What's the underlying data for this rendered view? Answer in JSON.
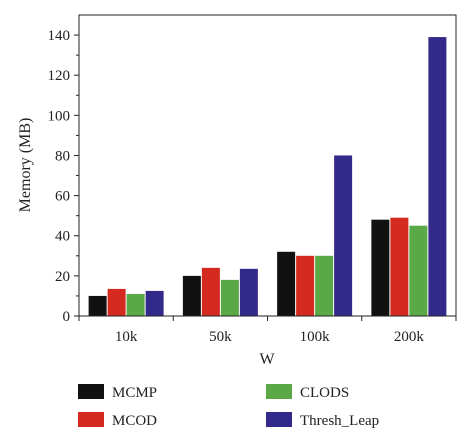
{
  "chart_data": {
    "type": "bar",
    "title": "",
    "xlabel": "W",
    "ylabel": "Memory (MB)",
    "categories": [
      "10k",
      "50k",
      "100k",
      "200k"
    ],
    "ylim": [
      0,
      150
    ],
    "yticks": [
      0,
      20,
      40,
      60,
      80,
      100,
      120,
      140
    ],
    "grid": false,
    "legend_position": "bottom",
    "series": [
      {
        "name": "MCMP",
        "color": "#111111",
        "values": [
          10,
          20,
          32,
          48
        ]
      },
      {
        "name": "MCOD",
        "color": "#d42a20",
        "values": [
          13.5,
          24,
          30,
          49
        ]
      },
      {
        "name": "CLODS",
        "color": "#5aa846",
        "values": [
          11,
          18,
          30,
          45
        ]
      },
      {
        "name": "Thresh_Leap",
        "color": "#33298a",
        "values": [
          12.5,
          23.5,
          80,
          139
        ]
      }
    ]
  }
}
